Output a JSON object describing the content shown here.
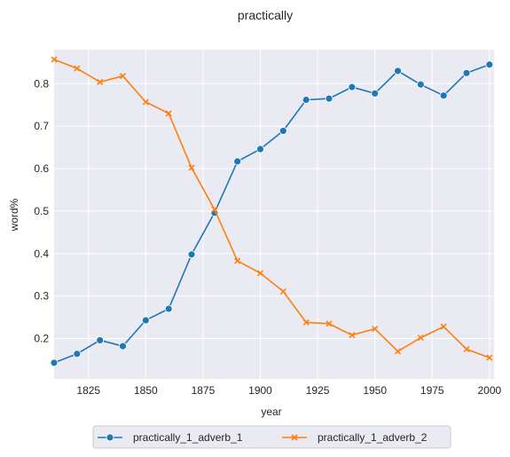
{
  "chart_data": {
    "type": "line",
    "title": "practically",
    "xlabel": "year",
    "ylabel": "word%",
    "xlim": [
      1810,
      2002
    ],
    "ylim": [
      0.105,
      0.88
    ],
    "xticks": [
      1825,
      1850,
      1875,
      1900,
      1925,
      1950,
      1975,
      2000
    ],
    "yticks": [
      0.2,
      0.3,
      0.4,
      0.5,
      0.6,
      0.7,
      0.8
    ],
    "grid": true,
    "legend_position": "bottom-center",
    "x": [
      1810,
      1820,
      1830,
      1840,
      1850,
      1860,
      1870,
      1880,
      1890,
      1900,
      1910,
      1920,
      1930,
      1940,
      1950,
      1960,
      1970,
      1980,
      1990,
      2000
    ],
    "series": [
      {
        "name": "practically_1_adverb_1",
        "color": "#1f77b4",
        "marker": "circle",
        "values": [
          0.143,
          0.164,
          0.196,
          0.182,
          0.243,
          0.27,
          0.398,
          0.496,
          0.617,
          0.646,
          0.689,
          0.762,
          0.765,
          0.792,
          0.777,
          0.83,
          0.798,
          0.772,
          0.825,
          0.845
        ]
      },
      {
        "name": "practically_1_adverb_2",
        "color": "#ff7f0e",
        "marker": "x",
        "values": [
          0.857,
          0.836,
          0.804,
          0.818,
          0.757,
          0.73,
          0.602,
          0.504,
          0.383,
          0.354,
          0.311,
          0.238,
          0.235,
          0.208,
          0.223,
          0.17,
          0.202,
          0.228,
          0.175,
          0.155
        ]
      }
    ]
  }
}
